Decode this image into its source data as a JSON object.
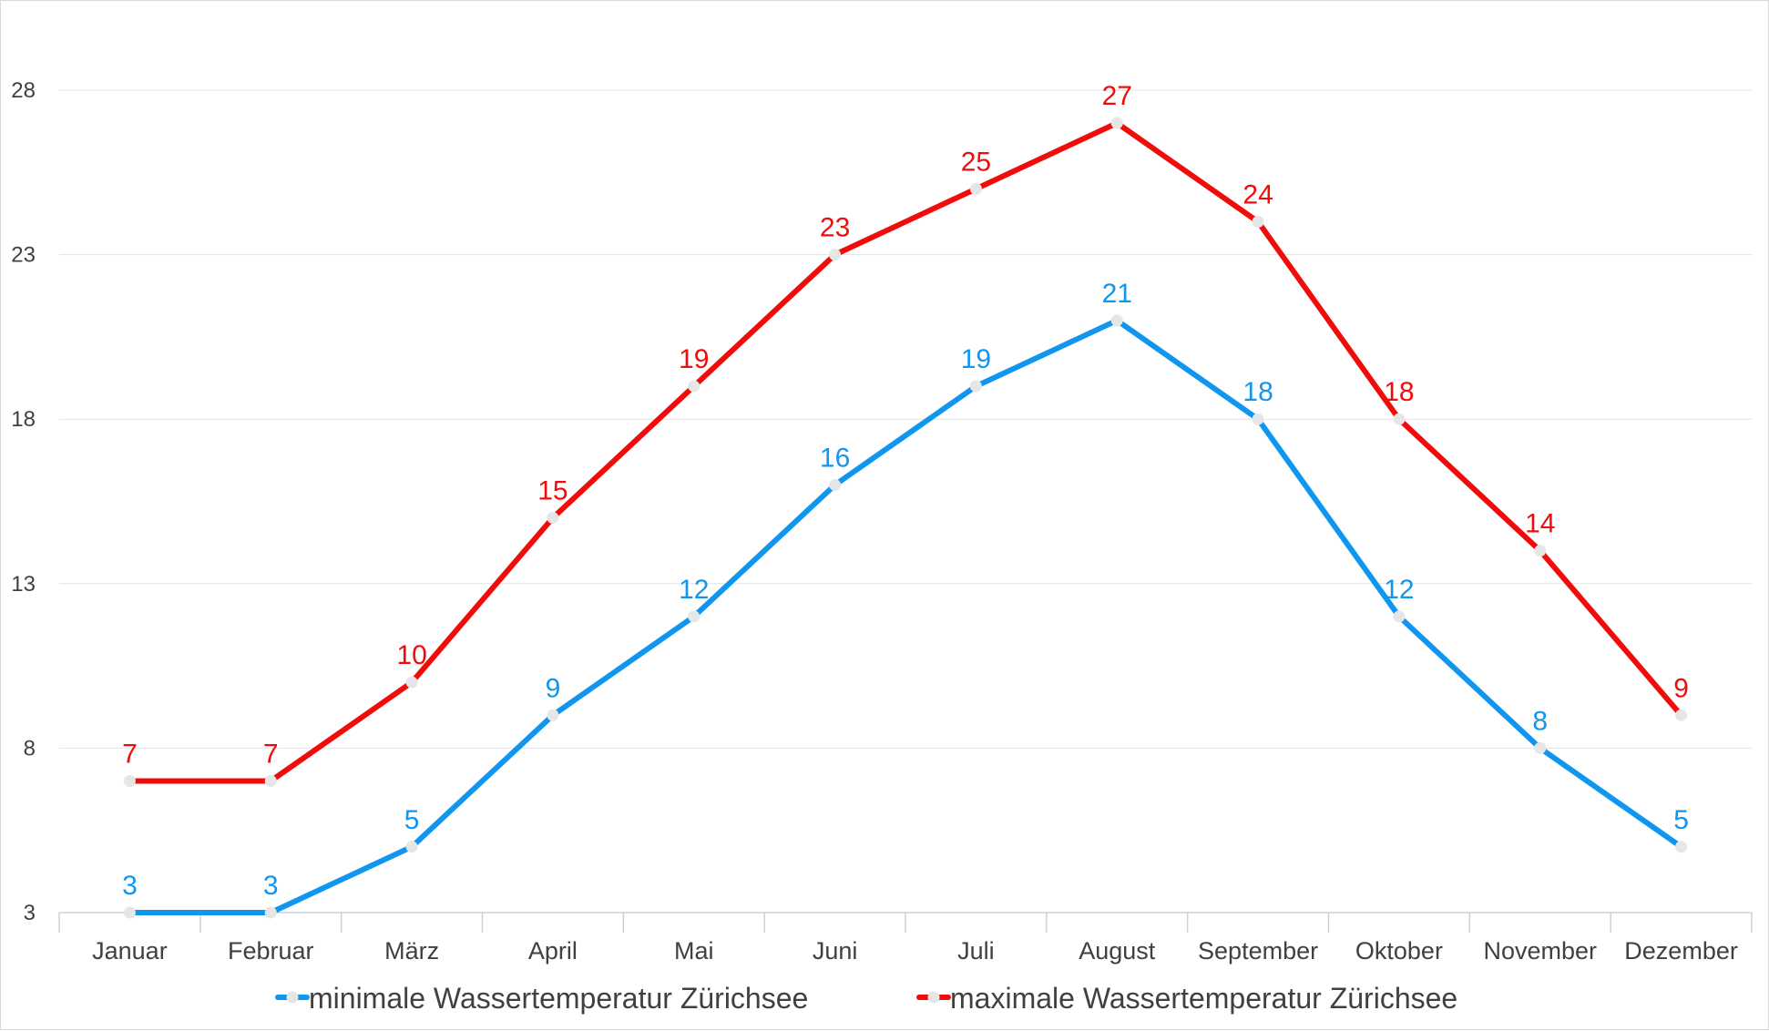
{
  "chart_data": {
    "type": "line",
    "title": "",
    "xlabel": "",
    "ylabel": "",
    "categories": [
      "Januar",
      "Februar",
      "März",
      "April",
      "Mai",
      "Juni",
      "Juli",
      "August",
      "September",
      "Oktober",
      "November",
      "Dezember"
    ],
    "y_ticks": [
      3,
      8,
      13,
      18,
      23,
      28
    ],
    "ylim": [
      3,
      30
    ],
    "grid": "horizontal",
    "legend_position": "bottom",
    "data_labels": true,
    "series": [
      {
        "name": "minimale Wassertemperatur Zürichsee",
        "color": "#1196f0",
        "values": [
          3,
          3,
          5,
          9,
          12,
          16,
          19,
          21,
          18,
          12,
          8,
          5
        ]
      },
      {
        "name": "maximale Wassertemperatur Zürichsee",
        "color": "#f10c0c",
        "values": [
          7,
          7,
          10,
          15,
          19,
          23,
          25,
          27,
          24,
          18,
          14,
          9
        ]
      }
    ]
  }
}
